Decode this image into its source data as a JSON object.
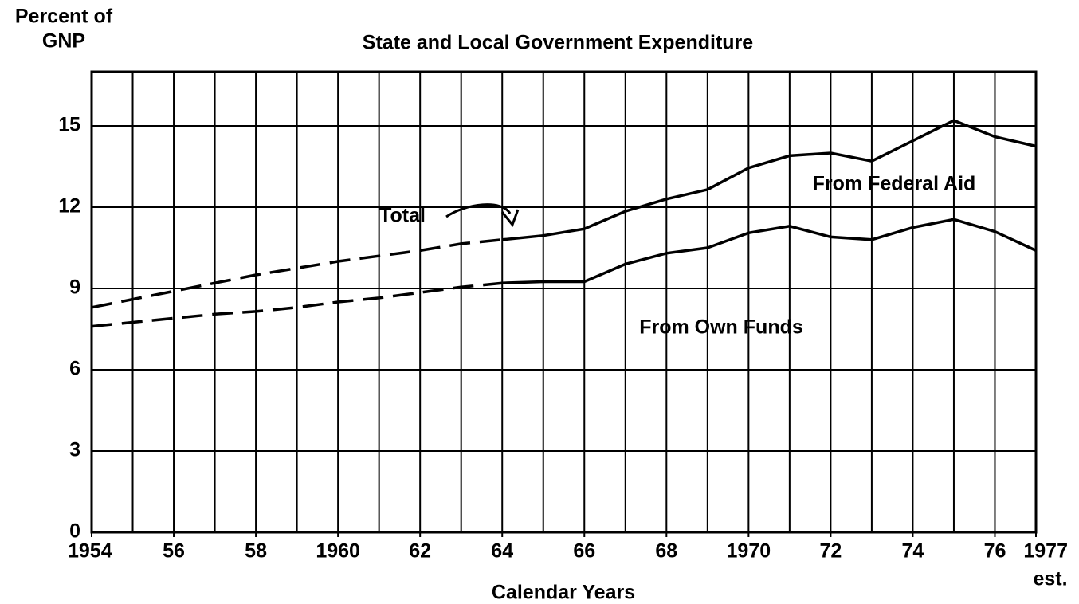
{
  "chart_data": {
    "type": "line",
    "title": "State and Local Government Expenditure",
    "ylabel": [
      "Percent of",
      "GNP"
    ],
    "xlabel": "Calendar Years",
    "x": [
      1954,
      1955,
      1956,
      1957,
      1958,
      1959,
      1960,
      1961,
      1962,
      1963,
      1964,
      1965,
      1966,
      1967,
      1968,
      1969,
      1970,
      1971,
      1972,
      1973,
      1974,
      1975,
      1976,
      1977
    ],
    "series": [
      {
        "name": "Total",
        "color": "#000000",
        "values": [
          8.3,
          8.6,
          8.9,
          9.2,
          9.5,
          9.75,
          10.0,
          10.2,
          10.4,
          10.65,
          10.8,
          10.95,
          11.2,
          11.85,
          12.3,
          12.65,
          13.45,
          13.9,
          14.0,
          13.7,
          14.45,
          15.2,
          14.6,
          14.25
        ]
      },
      {
        "name": "From Own Funds",
        "color": "#000000",
        "values": [
          7.6,
          7.75,
          7.9,
          8.05,
          8.15,
          8.3,
          8.5,
          8.65,
          8.85,
          9.05,
          9.2,
          9.25,
          9.25,
          9.9,
          10.3,
          10.5,
          11.05,
          11.3,
          10.9,
          10.8,
          11.25,
          11.55,
          11.1,
          10.4
        ]
      }
    ],
    "dashed_through": 1964,
    "band_label": "From Federal Aid",
    "xlim": [
      1954,
      1977
    ],
    "xgrid": [
      1954,
      1955,
      1956,
      1957,
      1958,
      1959,
      1960,
      1961,
      1962,
      1963,
      1964,
      1965,
      1966,
      1967,
      1968,
      1969,
      1970,
      1971,
      1972,
      1973,
      1974,
      1975,
      1976,
      1977
    ],
    "xticks": [
      1954,
      {
        "value": 1956,
        "label": "56"
      },
      {
        "value": 1958,
        "label": "58"
      },
      1960,
      {
        "value": 1962,
        "label": "62"
      },
      {
        "value": 1964,
        "label": "64"
      },
      {
        "value": 1966,
        "label": "66"
      },
      {
        "value": 1968,
        "label": "68"
      },
      1970,
      {
        "value": 1972,
        "label": "72"
      },
      {
        "value": 1974,
        "label": "74"
      },
      {
        "value": 1976,
        "label": "76"
      },
      1977
    ],
    "xtick_note": "est.",
    "ylim": [
      0,
      17
    ],
    "yticks": [
      0,
      3,
      6,
      9,
      12,
      15
    ],
    "grid": true
  }
}
